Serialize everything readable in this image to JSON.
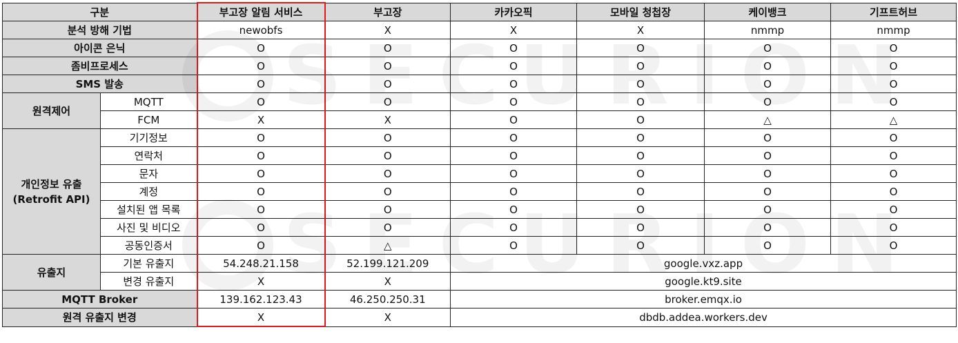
{
  "header": {
    "category": "구분",
    "columns": [
      "부고장 알림 서비스",
      "부고장",
      "카카오픽",
      "모바일 청첩장",
      "케이뱅크",
      "기프트허브"
    ]
  },
  "rows": {
    "obfuscation": {
      "label": "분석 방해 기법",
      "values": [
        "newobfs",
        "X",
        "X",
        "X",
        "nmmp",
        "nmmp"
      ]
    },
    "icon_hide": {
      "label": "아이콘 은닉",
      "values": [
        "O",
        "O",
        "O",
        "O",
        "O",
        "O"
      ]
    },
    "zombie": {
      "label": "좀비프로세스",
      "values": [
        "O",
        "O",
        "O",
        "O",
        "O",
        "O"
      ]
    },
    "sms": {
      "label": "SMS 발송",
      "values": [
        "O",
        "O",
        "O",
        "O",
        "O",
        "O"
      ]
    },
    "remote": {
      "label": "원격제어",
      "mqtt": {
        "label": "MQTT",
        "values": [
          "O",
          "O",
          "O",
          "O",
          "O",
          "O"
        ]
      },
      "fcm": {
        "label": "FCM",
        "values": [
          "X",
          "X",
          "O",
          "O",
          "△",
          "△"
        ]
      }
    },
    "leak": {
      "label_line1": "개인정보 유출",
      "label_line2": "(Retrofit API)",
      "items": [
        {
          "label": "기기정보",
          "values": [
            "O",
            "O",
            "O",
            "O",
            "O",
            "O"
          ]
        },
        {
          "label": "연락처",
          "values": [
            "O",
            "O",
            "O",
            "O",
            "O",
            "O"
          ]
        },
        {
          "label": "문자",
          "values": [
            "O",
            "O",
            "O",
            "O",
            "O",
            "O"
          ]
        },
        {
          "label": "계정",
          "values": [
            "O",
            "O",
            "O",
            "O",
            "O",
            "O"
          ]
        },
        {
          "label": "설치된 앱 목록",
          "values": [
            "O",
            "O",
            "O",
            "O",
            "O",
            "O"
          ]
        },
        {
          "label": "사진 및 비디오",
          "values": [
            "O",
            "O",
            "O",
            "O",
            "O",
            "O"
          ]
        },
        {
          "label": "공동인증서",
          "values": [
            "O",
            "△",
            "O",
            "O",
            "O",
            "O"
          ]
        }
      ]
    },
    "exfil": {
      "label": "유출지",
      "basic": {
        "label": "기본 유출지",
        "values": [
          "54.248.21.158",
          "52.199.121.209",
          "google.vxz.app"
        ]
      },
      "changed": {
        "label": "변경 유출지",
        "values": [
          "X",
          "X",
          "google.kt9.site"
        ]
      }
    },
    "broker": {
      "label": "MQTT Broker",
      "values": [
        "139.162.123.43",
        "46.250.250.31",
        "broker.emqx.io"
      ]
    },
    "remote_change": {
      "label": "원격 유출지 변경",
      "values": [
        "X",
        "X",
        "dbdb.addea.workers.dev"
      ]
    }
  },
  "watermark": {
    "text": "SECURION"
  }
}
